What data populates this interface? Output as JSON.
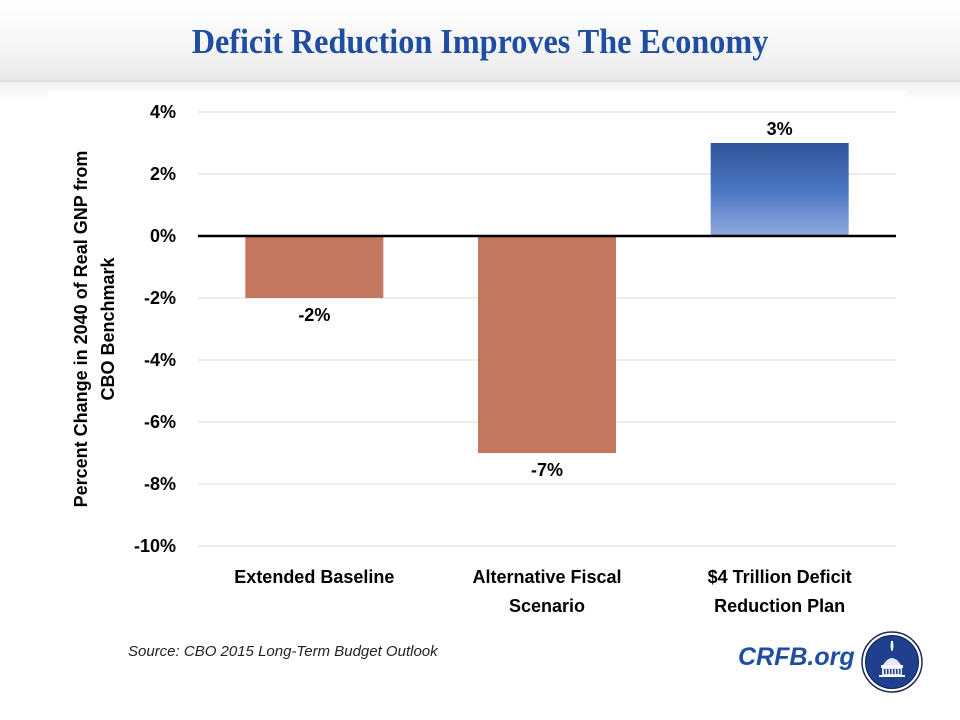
{
  "header": {
    "title": "Deficit Reduction Improves The Economy"
  },
  "footer": {
    "source": "Source: CBO 2015 Long-Term Budget Outlook",
    "brand": "CRFB.org",
    "logo_icon": "capitol-dome-seal-icon"
  },
  "colors": {
    "title": "#1f4ea1",
    "negative_bar": "#c4775f",
    "positive_bar_top": "#2e5596",
    "positive_bar_bottom": "#8fa9dc",
    "zero_line": "#000000",
    "grid": "#e6e6e6"
  },
  "chart_data": {
    "type": "bar",
    "title": "Deficit Reduction Improves The Economy",
    "xlabel": "",
    "ylabel": "Percent Change in 2040 of Real GNP from CBO Benchmark",
    "ylabel_lines": [
      "Percent Change in 2040 of Real GNP from",
      "CBO Benchmark"
    ],
    "categories": [
      "Extended Baseline",
      "Alternative Fiscal Scenario",
      "$4 Trillion Deficit Reduction Plan"
    ],
    "category_lines": [
      [
        "Extended Baseline"
      ],
      [
        "Alternative Fiscal",
        "Scenario"
      ],
      [
        "$4 Trillion Deficit",
        "Reduction Plan"
      ]
    ],
    "values": [
      -2,
      -7,
      3
    ],
    "data_labels": [
      "-2%",
      "-7%",
      "3%"
    ],
    "ylim": [
      -10,
      4
    ],
    "yticks": [
      4,
      2,
      0,
      -2,
      -4,
      -6,
      -8,
      -10
    ],
    "ytick_labels": [
      "4%",
      "2%",
      "0%",
      "-2%",
      "-4%",
      "-6%",
      "-8%",
      "-10%"
    ],
    "grid": true,
    "legend": "none"
  }
}
